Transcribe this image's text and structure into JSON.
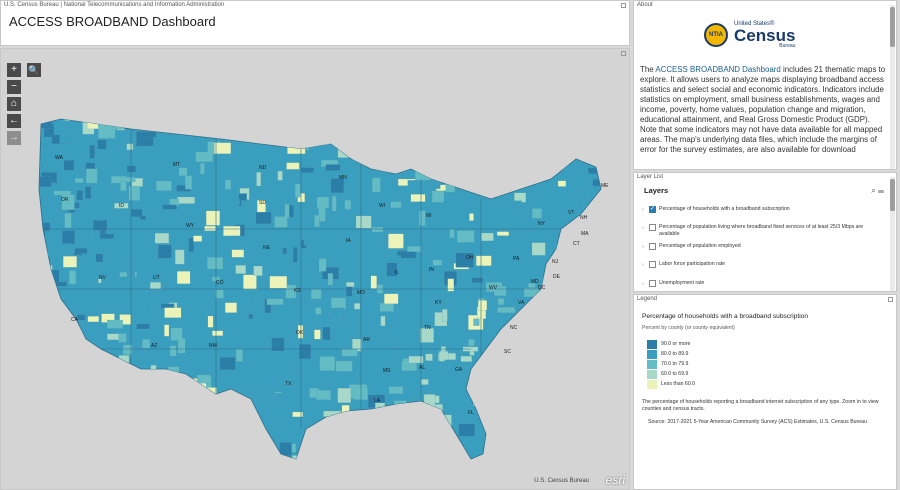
{
  "header": {
    "agency_line": "U.S. Census Bureau | National Telecommunications and Information Administration",
    "title": "ACCESS BROADBAND Dashboard"
  },
  "map": {
    "tools": {
      "zoom_in": "+",
      "zoom_out": "−",
      "home": "⌂",
      "back": "←",
      "forward": "→",
      "search": "🔍"
    },
    "attribution": "U.S. Census Bureau",
    "esri_logo": "esri",
    "state_labels": [
      "WA",
      "MT",
      "ND",
      "MN",
      "OR",
      "ID",
      "SD",
      "WY",
      "WI",
      "MI",
      "NV",
      "UT",
      "NE",
      "IA",
      "CA",
      "CO",
      "KS",
      "MO",
      "IL",
      "IN",
      "OH",
      "PA",
      "NY",
      "VT",
      "NH",
      "ME",
      "MA",
      "CT",
      "NJ",
      "MD",
      "DE",
      "DC",
      "WV",
      "VA",
      "KY",
      "AZ",
      "NM",
      "OK",
      "AR",
      "TN",
      "NC",
      "SC",
      "MS",
      "AL",
      "GA",
      "TX",
      "LA",
      "FL"
    ],
    "colors": {
      "very_high": "#2b7ea8",
      "high": "#3a9fbf",
      "mid": "#63bcc4",
      "low": "#a8d8c8",
      "very_low": "#ecf3b8"
    }
  },
  "about": {
    "label": "About",
    "logo_ntia": "NTIA",
    "logo_census_top": "United States®",
    "logo_census_main": "Census",
    "logo_census_bottom": "Bureau",
    "text_lead": "The ",
    "text_strong": "ACCESS BROADBAND Dashboard",
    "text_body": " includes 21 thematic maps to explore. It allows users to analyze maps displaying broadband access statistics and select social and economic indicators. Indicators include statistics on employment, small business establishments, wages and income, poverty, home values, population change and migration, educational attainment, and Real Gross Domestic Product (GDP). Note that some indicators may not have data available for all mapped areas. The map's underlying data files, which include the margins of error for the survey estimates, are also available for download"
  },
  "layer_list": {
    "label": "Layer List",
    "heading": "Layers",
    "items": [
      {
        "label": "Percentage of households with a broadband subscription",
        "checked": true
      },
      {
        "label": "Percentage of population living where broadband fixed services of at least 25/3 Mbps are available",
        "checked": false
      },
      {
        "label": "Percentage of population employed",
        "checked": false
      },
      {
        "label": "Labor force participation rate",
        "checked": false
      },
      {
        "label": "Unemployment rate",
        "checked": false
      }
    ]
  },
  "legend": {
    "label": "Legend",
    "title": "Percentage of households with a broadband subscription",
    "subtitle": "Percent by county (or county equivalent)",
    "classes": [
      {
        "label": "90.0 or more",
        "color": "#2b7ea8"
      },
      {
        "label": "80.0 to 89.9",
        "color": "#3a9fbf"
      },
      {
        "label": "70.0 to 79.9",
        "color": "#63bcc4"
      },
      {
        "label": "60.0 to 69.9",
        "color": "#a8d8c8"
      },
      {
        "label": "Less than 60.0",
        "color": "#ecf3b8"
      }
    ],
    "note": "The percentage of households reporting a broadband internet subscription of any type. Zoom in to view counties and census tracts.",
    "source": "Source: 2017-2021 5-Year American Community Survey (ACS) Estimates, U.S. Census Bureau"
  }
}
